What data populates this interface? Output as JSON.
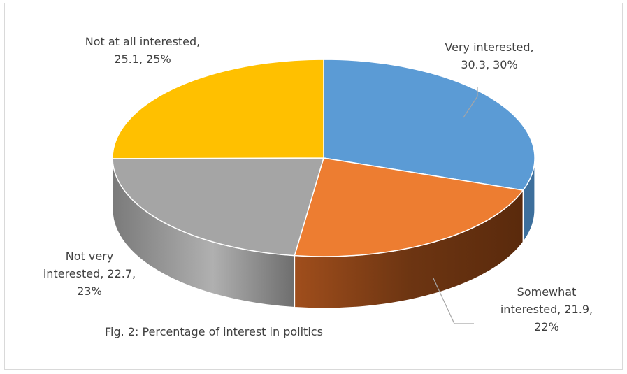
{
  "chart_data": {
    "type": "pie",
    "style": "3d",
    "caption": "Fig. 2: Percentage of interest in politics",
    "slices": [
      {
        "name": "Very interested",
        "value": 30.3,
        "percent": "30%",
        "label_lines": [
          "Very interested,",
          "30.3, 30%"
        ],
        "color": "#5b9bd5",
        "side_color": "#3d6f9c"
      },
      {
        "name": "Somewhat interested",
        "value": 21.9,
        "percent": "22%",
        "label_lines": [
          "Somewhat",
          "interested, 21.9,",
          "22%"
        ],
        "color": "#ed7d31",
        "side_color": "#8f4414"
      },
      {
        "name": "Not very interested",
        "value": 22.7,
        "percent": "23%",
        "label_lines": [
          "Not very",
          "interested, 22.7,",
          "23%"
        ],
        "color": "#a5a5a5",
        "side_color": "#6e6e6e"
      },
      {
        "name": "Not at all interested",
        "value": 25.1,
        "percent": "25%",
        "label_lines": [
          "Not at all interested,",
          "25.1, 25%"
        ],
        "color": "#ffc000",
        "side_color": "#b38600"
      }
    ]
  }
}
